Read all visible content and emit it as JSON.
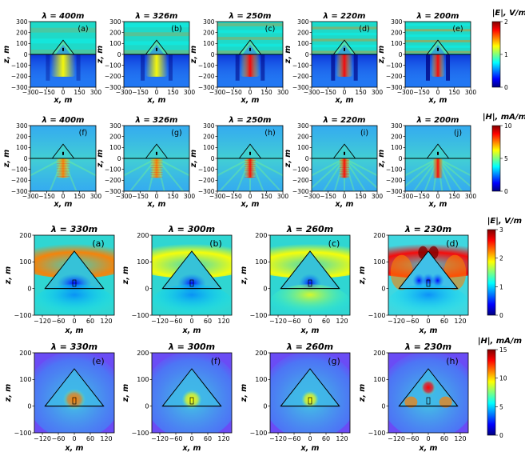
{
  "colors": {
    "jet": [
      "#00007f",
      "#0000ff",
      "#007fff",
      "#00ffff",
      "#7fff7f",
      "#ffff00",
      "#ff7f00",
      "#ff0000",
      "#7f0000"
    ]
  },
  "chart_data": [
    {
      "type": "heatmap",
      "quantity": "|E|",
      "colorbar": {
        "label": "|E|, V/m",
        "ticks": [
          "0",
          "1",
          "2"
        ],
        "range": [
          0,
          2
        ]
      },
      "xlabel": "x, m",
      "ylabel": "z, m",
      "xlim": [
        -300,
        300
      ],
      "ylim": [
        -300,
        300
      ],
      "xticks": [
        "−300",
        "−150",
        "0",
        "150",
        "300"
      ],
      "yticks": [
        "300",
        "200",
        "100",
        "0",
        "−100",
        "−200",
        "−300"
      ],
      "panels": [
        {
          "label": "(a)",
          "title": "λ = 400m",
          "wavelength": 400
        },
        {
          "label": "(b)",
          "title": "λ = 326m",
          "wavelength": 326
        },
        {
          "label": "(c)",
          "title": "λ = 250m",
          "wavelength": 250
        },
        {
          "label": "(d)",
          "title": "λ = 220m",
          "wavelength": 220
        },
        {
          "label": "(e)",
          "title": "λ = 200m",
          "wavelength": 200
        }
      ]
    },
    {
      "type": "heatmap",
      "quantity": "|H|",
      "colorbar": {
        "label": "|H|, mA/m",
        "ticks": [
          "0",
          "5",
          "10"
        ],
        "range": [
          0,
          10
        ]
      },
      "xlabel": "x, m",
      "ylabel": "z, m",
      "xlim": [
        -300,
        300
      ],
      "ylim": [
        -300,
        300
      ],
      "xticks": [
        "−300",
        "−150",
        "0",
        "150",
        "300"
      ],
      "yticks": [
        "300",
        "200",
        "100",
        "0",
        "−100",
        "−200",
        "−300"
      ],
      "panels": [
        {
          "label": "(f)",
          "title": "λ = 400m",
          "wavelength": 400
        },
        {
          "label": "(g)",
          "title": "λ = 326m",
          "wavelength": 326
        },
        {
          "label": "(h)",
          "title": "λ = 250m",
          "wavelength": 250
        },
        {
          "label": "(i)",
          "title": "λ = 220m",
          "wavelength": 220
        },
        {
          "label": "(j)",
          "title": "λ = 200m",
          "wavelength": 200
        }
      ]
    },
    {
      "type": "heatmap",
      "quantity": "|E|",
      "colorbar": {
        "label": "|E|, V/m",
        "ticks": [
          "0",
          "1",
          "2",
          "3"
        ],
        "range": [
          0,
          3
        ]
      },
      "xlabel": "x, m",
      "ylabel": "z, m",
      "xlim": [
        -150,
        150
      ],
      "ylim": [
        -100,
        200
      ],
      "xticks": [
        "−120",
        "−60",
        "0",
        "60",
        "120"
      ],
      "yticks": [
        "200",
        "100",
        "0",
        "−100"
      ],
      "panels": [
        {
          "label": "(a)",
          "title": "λ = 330m",
          "wavelength": 330
        },
        {
          "label": "(b)",
          "title": "λ = 300m",
          "wavelength": 300
        },
        {
          "label": "(c)",
          "title": "λ = 260m",
          "wavelength": 260
        },
        {
          "label": "(d)",
          "title": "λ = 230m",
          "wavelength": 230
        }
      ]
    },
    {
      "type": "heatmap",
      "quantity": "|H|",
      "colorbar": {
        "label": "|H|, mA/m",
        "ticks": [
          "0",
          "5",
          "10",
          "15"
        ],
        "range": [
          0,
          15
        ]
      },
      "xlabel": "x, m",
      "ylabel": "z, m",
      "xlim": [
        -150,
        150
      ],
      "ylim": [
        -100,
        200
      ],
      "xticks": [
        "−120",
        "−60",
        "0",
        "60",
        "120"
      ],
      "yticks": [
        "200",
        "100",
        "0",
        "−100"
      ],
      "panels": [
        {
          "label": "(e)",
          "title": "λ = 330m",
          "wavelength": 330
        },
        {
          "label": "(f)",
          "title": "λ = 300m",
          "wavelength": 300
        },
        {
          "label": "(g)",
          "title": "λ = 260m",
          "wavelength": 260
        },
        {
          "label": "(h)",
          "title": "λ = 230m",
          "wavelength": 230
        }
      ]
    }
  ]
}
